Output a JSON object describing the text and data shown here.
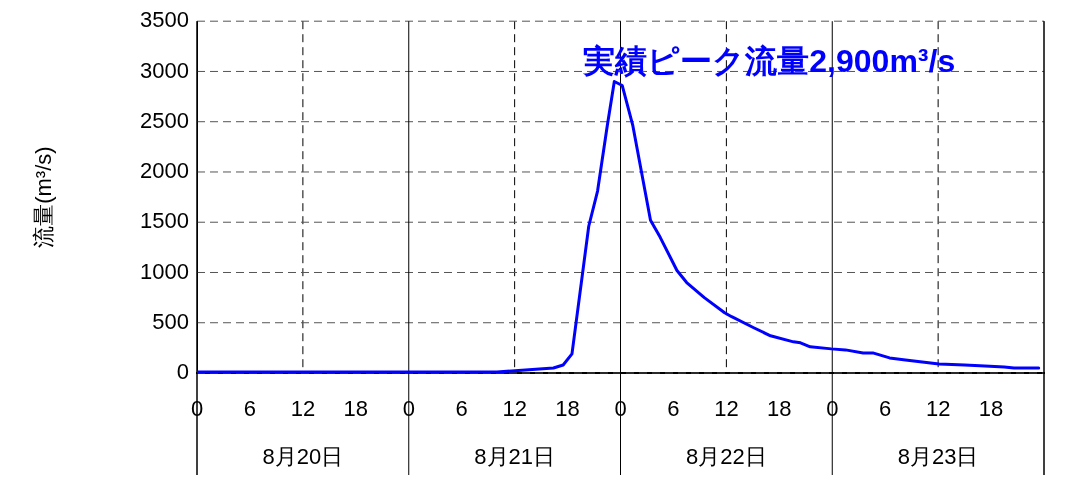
{
  "chart_data": {
    "type": "line",
    "ylabel": "流量(m³/s)",
    "x": [
      "--08-20T00:00",
      "--08-21T10:00",
      "--08-21T14:48",
      "--08-21T16:24",
      "--08-21T17:30",
      "--08-21T18:30",
      "--08-21T20:24",
      "--08-21T21:24",
      "--08-21T22:30",
      "--08-21T23:18",
      "--08-22T00:12",
      "--08-22T01:24",
      "--08-22T03:24",
      "--08-22T04:30",
      "--08-22T06:24",
      "--08-22T07:30",
      "--08-22T09:30",
      "--08-22T11:48",
      "--08-22T12:36",
      "--08-22T15:06",
      "--08-22T17:00",
      "--08-22T19:36",
      "--08-22T20:24",
      "--08-22T21:30",
      "--08-22T23:54",
      "--08-23T01:30",
      "--08-23T03:30",
      "--08-23T04:36",
      "--08-23T06:30",
      "--08-23T08:18",
      "--08-23T12:06",
      "--08-23T15:00",
      "--08-23T17:18",
      "--08-23T19:30",
      "--08-23T20:36",
      "--08-23T23:24"
    ],
    "series": [
      {
        "color": "#0000ff",
        "values": [
          10,
          10,
          40,
          50,
          80,
          190,
          1460,
          1810,
          2460,
          2900,
          2860,
          2460,
          1520,
          1350,
          1020,
          900,
          750,
          600,
          560,
          450,
          370,
          310,
          300,
          260,
          240,
          230,
          200,
          200,
          150,
          130,
          90,
          80,
          70,
          60,
          50,
          50
        ]
      }
    ],
    "xlim": [
      "--08-20T00:00",
      "--08-24T00:00"
    ],
    "xticks": [
      {
        "value": "--08-20T00:00",
        "label": "0"
      },
      {
        "value": "--08-20T06:00",
        "label": "6"
      },
      {
        "value": "--08-20T12:00",
        "label": "12"
      },
      {
        "value": "--08-20T18:00",
        "label": "18"
      },
      {
        "value": "--08-21T00:00",
        "label": "0"
      },
      {
        "value": "--08-21T06:00",
        "label": "6"
      },
      {
        "value": "--08-21T12:00",
        "label": "12"
      },
      {
        "value": "--08-21T18:00",
        "label": "18"
      },
      {
        "value": "--08-22T00:00",
        "label": "0"
      },
      {
        "value": "--08-22T06:00",
        "label": "6"
      },
      {
        "value": "--08-22T12:00",
        "label": "12"
      },
      {
        "value": "--08-22T18:00",
        "label": "18"
      },
      {
        "value": "--08-23T00:00",
        "label": "0"
      },
      {
        "value": "--08-23T06:00",
        "label": "6"
      },
      {
        "value": "--08-23T12:00",
        "label": "12"
      },
      {
        "value": "--08-23T18:00",
        "label": "18"
      },
      {
        "value": "--08-24T00:00",
        "label": null
      }
    ],
    "ylim": [
      0,
      3500
    ],
    "yticks": [
      0,
      500,
      1000,
      1500,
      2000,
      2500,
      3000,
      3500
    ],
    "annotations": [
      {
        "text": "実績ピーク流量2,900m³/s",
        "x": "--08-21T23:18",
        "y": 2900
      },
      "8月20日",
      "8月21日",
      "8月22日",
      "8月23日"
    ],
    "grid": true,
    "legend": false,
    "marker": "none",
    "line_style": "solid"
  }
}
